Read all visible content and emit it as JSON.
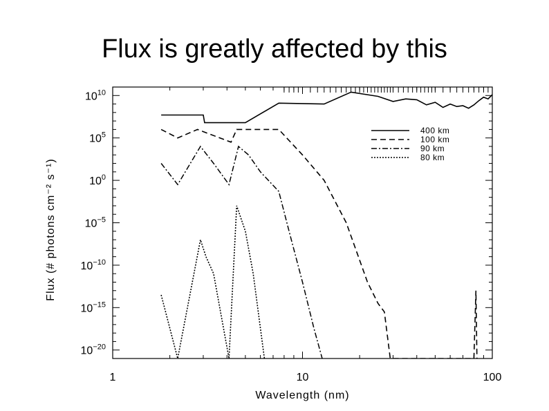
{
  "slide": {
    "title": "Flux is greatly affected by this"
  },
  "chart_data": {
    "type": "line",
    "title": "",
    "xlabel": "Wavelength (nm)",
    "ylabel": "Flux (# photons cm⁻² s⁻¹)",
    "xscale": "log",
    "yscale": "log",
    "xlim": [
      1,
      100
    ],
    "ylim_exponent": [
      -21,
      11
    ],
    "x_ticks": [
      1,
      10,
      100
    ],
    "x_tick_labels": [
      "1",
      "10",
      "100"
    ],
    "y_ticks_exponent": [
      10,
      5,
      0,
      -5,
      -10,
      -15,
      -20
    ],
    "y_tick_labels": [
      {
        "base": "10",
        "exp": "10"
      },
      {
        "base": "10",
        "exp": "5"
      },
      {
        "base": "10",
        "exp": "0"
      },
      {
        "base": "10",
        "exp": "−5"
      },
      {
        "base": "10",
        "exp": "−10"
      },
      {
        "base": "10",
        "exp": "−15"
      },
      {
        "base": "10",
        "exp": "−20"
      }
    ],
    "legend_position": "top-right",
    "series": [
      {
        "name": "400 km",
        "dash": "solid",
        "x": [
          1.8,
          3.0,
          3.05,
          5.0,
          7.5,
          13,
          18,
          25,
          30,
          35,
          40,
          45,
          50,
          55,
          60,
          65,
          70,
          75,
          80,
          85,
          90,
          95,
          100
        ],
        "log10_y": [
          7.7,
          7.7,
          6.8,
          6.8,
          9.1,
          9.0,
          10.4,
          9.9,
          9.3,
          9.6,
          9.5,
          8.9,
          9.2,
          8.6,
          9.0,
          8.7,
          8.8,
          8.5,
          8.9,
          9.4,
          9.8,
          9.6,
          10.1
        ]
      },
      {
        "name": "100 km",
        "dash": "dashed",
        "x": [
          1.8,
          2.2,
          2.8,
          4.2,
          4.5,
          5.0,
          7.5,
          10,
          13,
          17,
          22,
          25,
          27,
          29,
          80,
          82,
          83
        ],
        "log10_y": [
          6.0,
          5.0,
          6.0,
          4.5,
          6.0,
          6.0,
          6.0,
          3.0,
          0.0,
          -5.0,
          -12.0,
          -14.5,
          -15.5,
          -21.0,
          -21.0,
          -13.0,
          -21.0
        ]
      },
      {
        "name": "90 km",
        "dash": "dashdot",
        "x": [
          1.8,
          2.2,
          2.9,
          3.4,
          4.1,
          4.6,
          5.2,
          6.0,
          7.5,
          8.5,
          10,
          11.5,
          12.7
        ],
        "log10_y": [
          2.0,
          -0.5,
          4.0,
          2.0,
          -0.5,
          4.0,
          3.0,
          1.0,
          -1.3,
          -6.0,
          -12.0,
          -17.5,
          -21.0
        ]
      },
      {
        "name": "80 km",
        "dash": "dotted",
        "x": [
          1.8,
          2.2,
          2.9,
          3.1,
          3.4,
          4.1,
          4.5,
          5.0,
          5.5,
          6.3
        ],
        "log10_y": [
          -13.5,
          -21.0,
          -7.0,
          -9.0,
          -11.0,
          -21.0,
          -3.0,
          -6.0,
          -11.0,
          -21.0
        ]
      }
    ],
    "top_rug_x": [
      8,
      8.5,
      9,
      9.5,
      10,
      11,
      12,
      13,
      14,
      15,
      16,
      17,
      18,
      19,
      20,
      21,
      22,
      23,
      24,
      25,
      26,
      27,
      28,
      29,
      30,
      32,
      34,
      36,
      38,
      40,
      42,
      44,
      46,
      48,
      50,
      55,
      60,
      65,
      70,
      75,
      80,
      85,
      90,
      95
    ]
  }
}
